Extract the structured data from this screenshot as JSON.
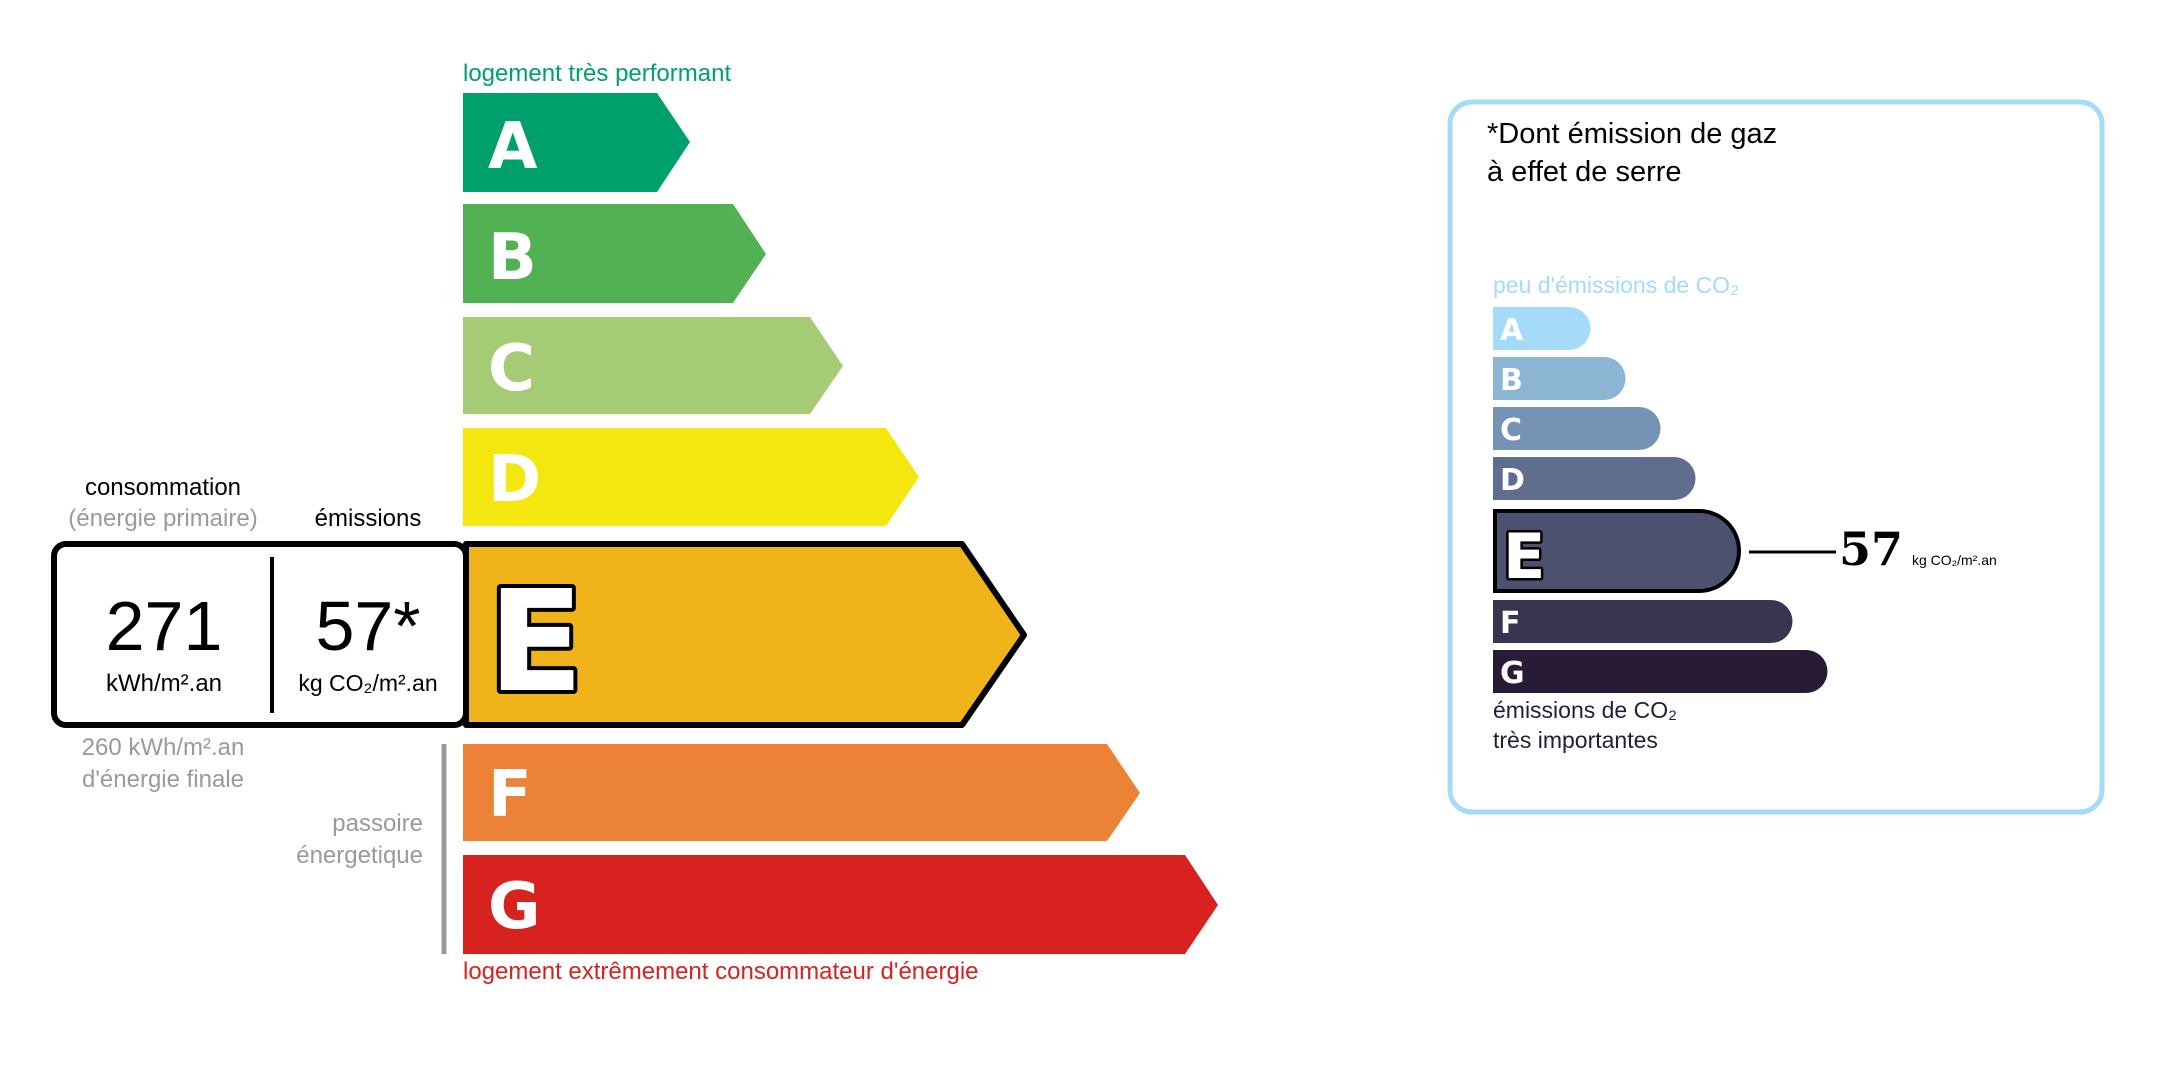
{
  "energy_label": {
    "top_caption": "logement très performant",
    "bottom_caption": "logement extrêmement consommateur d'énergie",
    "classes": [
      {
        "letter": "A",
        "color": "#00a06d"
      },
      {
        "letter": "B",
        "color": "#52b153"
      },
      {
        "letter": "C",
        "color": "#a5cc74"
      },
      {
        "letter": "D",
        "color": "#f4e70f"
      },
      {
        "letter": "E",
        "color": "#f0b41a"
      },
      {
        "letter": "F",
        "color": "#eb8235"
      },
      {
        "letter": "G",
        "color": "#d7221f"
      }
    ],
    "current_class": "E",
    "consumption_label": "consommation",
    "consumption_sublabel": "(énergie primaire)",
    "emissions_label": "émissions",
    "consumption_value": "271",
    "consumption_unit": "kWh/m².an",
    "emissions_value": "57*",
    "emissions_unit": "kg CO₂/m².an",
    "final_energy_line1": "260 kWh/m².an",
    "final_energy_line2": "d'énergie finale",
    "passoire_line1": "passoire",
    "passoire_line2": "énergetique"
  },
  "ges_panel": {
    "title_line1": "*Dont émission de gaz",
    "title_line2": "à effet de serre",
    "top_caption": "peu d'émissions de CO₂",
    "bottom_caption_line1": "émissions de CO₂",
    "bottom_caption_line2": "très importantes",
    "classes": [
      {
        "letter": "A",
        "color": "#a4dbf8"
      },
      {
        "letter": "B",
        "color": "#8cb4d3"
      },
      {
        "letter": "C",
        "color": "#7593b4"
      },
      {
        "letter": "D",
        "color": "#5f6e8f"
      },
      {
        "letter": "E",
        "color": "#4c5170"
      },
      {
        "letter": "F",
        "color": "#393551"
      },
      {
        "letter": "G",
        "color": "#281b35"
      }
    ],
    "current_class": "E",
    "value": "57",
    "unit": "kg CO₂/m².an",
    "border_color": "#a4dbf8"
  }
}
